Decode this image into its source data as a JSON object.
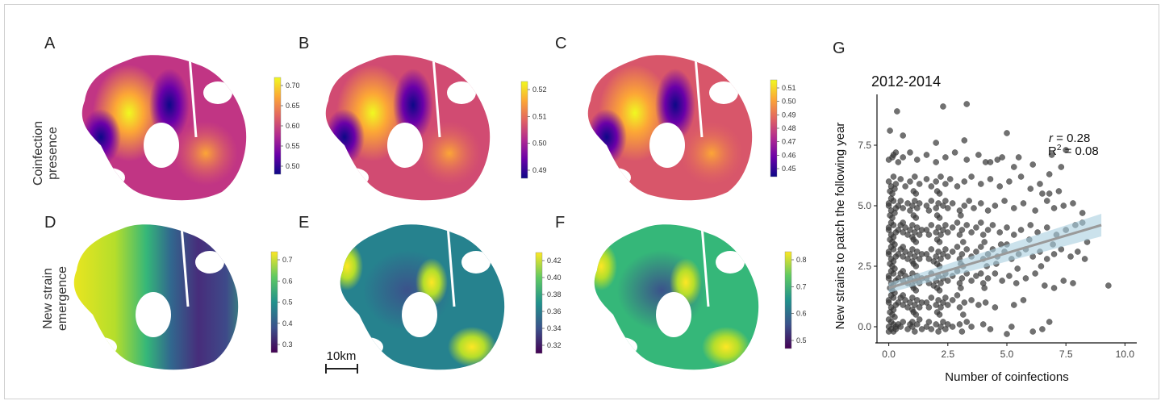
{
  "panels": {
    "A": {
      "letter": "A",
      "ticks": [
        "0.70",
        "0.65",
        "0.60",
        "0.55",
        "0.50"
      ],
      "palette": "plasma"
    },
    "B": {
      "letter": "B",
      "ticks": [
        "0.52",
        "0.51",
        "0.50",
        "0.49"
      ],
      "palette": "plasma"
    },
    "C": {
      "letter": "C",
      "ticks": [
        "0.51",
        "0.50",
        "0.49",
        "0.48",
        "0.47",
        "0.46",
        "0.45"
      ],
      "palette": "plasma"
    },
    "D": {
      "letter": "D",
      "ticks": [
        "0.7",
        "0.6",
        "0.5",
        "0.4",
        "0.3"
      ],
      "palette": "viridis"
    },
    "E": {
      "letter": "E",
      "ticks": [
        "0.42",
        "0.40",
        "0.38",
        "0.36",
        "0.34",
        "0.32"
      ],
      "palette": "viridis"
    },
    "F": {
      "letter": "F",
      "ticks": [
        "0.8",
        "0.7",
        "0.6",
        "0.5"
      ],
      "palette": "viridis"
    }
  },
  "row_labels": {
    "top_line1": "Coinfection",
    "top_line2": "presence",
    "bottom_line1": "New strain",
    "bottom_line2": "emergence"
  },
  "scale_bar": "10km",
  "palettes": {
    "plasma": [
      "#0d0887",
      "#6a00a8",
      "#b12a90",
      "#e16462",
      "#fca636",
      "#f0f921"
    ],
    "viridis": [
      "#440154",
      "#3b528b",
      "#21918c",
      "#5ec962",
      "#fde725"
    ]
  },
  "chart_data": {
    "type": "scatter",
    "letter": "G",
    "title": "2012-2014",
    "xlabel": "Number of coinfections",
    "ylabel": "New strains to patch the following year",
    "xlim": [
      -0.5,
      10.5
    ],
    "ylim": [
      -0.6,
      9.6
    ],
    "xticks": [
      0.0,
      2.5,
      5.0,
      7.5,
      10.0
    ],
    "xtick_labels": [
      "0.0",
      "2.5",
      "5.0",
      "7.5",
      "10.0"
    ],
    "yticks": [
      0.0,
      2.5,
      5.0,
      7.5
    ],
    "ytick_labels": [
      "0.0",
      "2.5",
      "5.0",
      "7.5"
    ],
    "point_color": "#3a3a3a",
    "fit_line": {
      "x": [
        0,
        9
      ],
      "y": [
        1.6,
        4.2
      ],
      "color": "#9a9a9a",
      "band_color": "#a9cfe0"
    },
    "stats": {
      "r_label": "r",
      "r_value": " = 0.28",
      "R2_base": "R",
      "R2_sup": "2",
      "R2_value": " = 0.08"
    },
    "points": [
      [
        0.05,
        8.1
      ],
      [
        0.35,
        8.9
      ],
      [
        0.15,
        7.0
      ],
      [
        0.3,
        7.2
      ],
      [
        2.3,
        9.1
      ],
      [
        3.3,
        9.2
      ],
      [
        0.6,
        7.9
      ],
      [
        2.0,
        7.6
      ],
      [
        3.2,
        7.7
      ],
      [
        5.0,
        8.0
      ],
      [
        4.1,
        6.8
      ],
      [
        4.6,
        6.9
      ],
      [
        5.5,
        7.0
      ],
      [
        6.9,
        7.1
      ],
      [
        7.5,
        7.3
      ],
      [
        9.3,
        1.7
      ],
      [
        8.4,
        3.5
      ],
      [
        8.2,
        4.7
      ],
      [
        6.4,
        5.9
      ],
      [
        6.8,
        5.5
      ],
      [
        0.0,
        0.0
      ],
      [
        0.1,
        -0.1
      ],
      [
        0.2,
        0.1
      ],
      [
        0.0,
        -0.2
      ],
      [
        0.3,
        0.0
      ],
      [
        0.1,
        0.2
      ],
      [
        0.2,
        -0.2
      ],
      [
        0.4,
        0.1
      ],
      [
        0.0,
        0.3
      ],
      [
        0.3,
        -0.1
      ],
      [
        0.5,
        0.0
      ],
      [
        0.6,
        0.2
      ],
      [
        0.8,
        -0.1
      ],
      [
        0.9,
        0.1
      ],
      [
        1.0,
        0.0
      ],
      [
        1.1,
        -0.2
      ],
      [
        1.2,
        0.1
      ],
      [
        1.3,
        0.3
      ],
      [
        1.4,
        -0.1
      ],
      [
        1.0,
        0.2
      ],
      [
        1.6,
        0.0
      ],
      [
        1.7,
        0.2
      ],
      [
        1.8,
        -0.1
      ],
      [
        2.0,
        0.1
      ],
      [
        2.1,
        -0.2
      ],
      [
        2.2,
        0.0
      ],
      [
        2.3,
        0.2
      ],
      [
        2.4,
        -0.1
      ],
      [
        2.5,
        0.1
      ],
      [
        2.7,
        0.0
      ],
      [
        3.0,
        0.1
      ],
      [
        3.1,
        -0.2
      ],
      [
        3.3,
        0.2
      ],
      [
        3.5,
        0.0
      ],
      [
        4.0,
        0.1
      ],
      [
        4.3,
        -0.1
      ],
      [
        5.0,
        -0.3
      ],
      [
        5.2,
        0.0
      ],
      [
        6.1,
        -0.2
      ],
      [
        6.5,
        -0.1
      ],
      [
        0.0,
        1.0
      ],
      [
        0.1,
        0.8
      ],
      [
        0.2,
        1.2
      ],
      [
        0.0,
        1.1
      ],
      [
        0.3,
        0.9
      ],
      [
        0.1,
        1.3
      ],
      [
        0.2,
        0.7
      ],
      [
        0.4,
        1.0
      ],
      [
        0.5,
        1.2
      ],
      [
        0.6,
        0.9
      ],
      [
        0.7,
        1.1
      ],
      [
        0.8,
        0.8
      ],
      [
        0.9,
        1.0
      ],
      [
        1.0,
        1.2
      ],
      [
        1.1,
        0.9
      ],
      [
        1.2,
        1.1
      ],
      [
        1.3,
        0.8
      ],
      [
        1.4,
        1.0
      ],
      [
        1.0,
        0.7
      ],
      [
        0.6,
        1.3
      ],
      [
        1.6,
        1.0
      ],
      [
        1.7,
        0.8
      ],
      [
        1.8,
        1.2
      ],
      [
        2.0,
        0.9
      ],
      [
        2.1,
        1.1
      ],
      [
        2.2,
        0.8
      ],
      [
        2.3,
        1.0
      ],
      [
        2.4,
        1.2
      ],
      [
        2.5,
        0.9
      ],
      [
        2.7,
        1.1
      ],
      [
        3.0,
        0.8
      ],
      [
        3.2,
        1.0
      ],
      [
        3.5,
        1.1
      ],
      [
        3.8,
        0.9
      ],
      [
        4.1,
        1.0
      ],
      [
        4.5,
        0.8
      ],
      [
        5.3,
        0.9
      ],
      [
        5.7,
        1.1
      ],
      [
        6.8,
        0.2
      ],
      [
        2.9,
        1.3
      ],
      [
        0.0,
        2.0
      ],
      [
        0.1,
        1.8
      ],
      [
        0.2,
        2.2
      ],
      [
        0.0,
        2.1
      ],
      [
        0.3,
        1.9
      ],
      [
        0.1,
        2.3
      ],
      [
        0.2,
        1.7
      ],
      [
        0.4,
        2.0
      ],
      [
        0.5,
        2.2
      ],
      [
        0.6,
        1.9
      ],
      [
        0.7,
        2.1
      ],
      [
        0.8,
        1.8
      ],
      [
        0.9,
        2.0
      ],
      [
        1.0,
        2.2
      ],
      [
        1.1,
        1.9
      ],
      [
        1.2,
        2.1
      ],
      [
        1.3,
        1.8
      ],
      [
        1.4,
        2.0
      ],
      [
        1.0,
        1.7
      ],
      [
        0.6,
        2.3
      ],
      [
        1.6,
        2.0
      ],
      [
        1.7,
        1.8
      ],
      [
        1.8,
        2.2
      ],
      [
        2.0,
        1.9
      ],
      [
        2.1,
        2.1
      ],
      [
        2.2,
        1.8
      ],
      [
        2.3,
        2.0
      ],
      [
        2.4,
        2.2
      ],
      [
        2.5,
        1.9
      ],
      [
        2.7,
        2.1
      ],
      [
        3.0,
        1.8
      ],
      [
        3.1,
        2.0
      ],
      [
        3.3,
        2.2
      ],
      [
        3.5,
        1.9
      ],
      [
        3.7,
        2.1
      ],
      [
        4.0,
        1.8
      ],
      [
        4.2,
        2.0
      ],
      [
        4.5,
        2.2
      ],
      [
        4.8,
        1.9
      ],
      [
        5.1,
        2.1
      ],
      [
        5.4,
        1.8
      ],
      [
        5.8,
        2.0
      ],
      [
        6.2,
        2.2
      ],
      [
        6.6,
        1.7
      ],
      [
        7.0,
        1.6
      ],
      [
        7.4,
        1.9
      ],
      [
        7.8,
        1.8
      ],
      [
        3.9,
        2.2
      ],
      [
        2.9,
        2.3
      ],
      [
        1.9,
        1.7
      ],
      [
        0.0,
        3.0
      ],
      [
        0.1,
        2.8
      ],
      [
        0.2,
        3.2
      ],
      [
        0.0,
        3.1
      ],
      [
        0.3,
        2.9
      ],
      [
        0.1,
        3.3
      ],
      [
        0.2,
        2.7
      ],
      [
        0.4,
        3.0
      ],
      [
        0.5,
        3.2
      ],
      [
        0.6,
        2.9
      ],
      [
        0.7,
        3.1
      ],
      [
        0.8,
        2.8
      ],
      [
        0.9,
        3.0
      ],
      [
        1.0,
        3.2
      ],
      [
        1.1,
        2.9
      ],
      [
        1.2,
        3.1
      ],
      [
        1.3,
        2.8
      ],
      [
        1.4,
        3.0
      ],
      [
        1.0,
        2.7
      ],
      [
        0.6,
        3.3
      ],
      [
        1.6,
        3.0
      ],
      [
        1.7,
        2.8
      ],
      [
        1.8,
        3.2
      ],
      [
        2.0,
        2.9
      ],
      [
        2.1,
        3.1
      ],
      [
        2.2,
        2.8
      ],
      [
        2.3,
        3.0
      ],
      [
        2.4,
        3.2
      ],
      [
        2.5,
        2.9
      ],
      [
        2.7,
        3.1
      ],
      [
        3.0,
        2.8
      ],
      [
        3.1,
        3.0
      ],
      [
        3.3,
        3.2
      ],
      [
        3.5,
        2.9
      ],
      [
        3.7,
        3.1
      ],
      [
        4.0,
        2.8
      ],
      [
        4.2,
        3.0
      ],
      [
        4.4,
        3.2
      ],
      [
        4.6,
        2.9
      ],
      [
        4.9,
        3.1
      ],
      [
        5.2,
        2.8
      ],
      [
        5.5,
        3.0
      ],
      [
        5.8,
        3.2
      ],
      [
        6.1,
        2.9
      ],
      [
        6.4,
        3.1
      ],
      [
        6.7,
        2.8
      ],
      [
        7.0,
        3.0
      ],
      [
        7.3,
        3.2
      ],
      [
        7.7,
        2.9
      ],
      [
        8.0,
        3.1
      ],
      [
        8.3,
        2.8
      ],
      [
        2.9,
        3.3
      ],
      [
        1.9,
        2.7
      ],
      [
        3.9,
        3.3
      ],
      [
        5.0,
        3.4
      ],
      [
        0.0,
        4.0
      ],
      [
        0.1,
        3.8
      ],
      [
        0.2,
        4.2
      ],
      [
        0.0,
        4.1
      ],
      [
        0.3,
        3.9
      ],
      [
        0.1,
        4.3
      ],
      [
        0.2,
        3.7
      ],
      [
        0.4,
        4.0
      ],
      [
        0.5,
        4.2
      ],
      [
        0.6,
        3.9
      ],
      [
        0.7,
        4.1
      ],
      [
        0.8,
        3.8
      ],
      [
        0.9,
        4.0
      ],
      [
        1.0,
        4.2
      ],
      [
        1.1,
        3.9
      ],
      [
        1.2,
        4.1
      ],
      [
        1.3,
        3.8
      ],
      [
        1.4,
        4.0
      ],
      [
        1.0,
        3.7
      ],
      [
        0.6,
        4.3
      ],
      [
        1.6,
        4.0
      ],
      [
        1.7,
        3.8
      ],
      [
        1.8,
        4.2
      ],
      [
        2.0,
        3.9
      ],
      [
        2.1,
        4.1
      ],
      [
        2.2,
        3.8
      ],
      [
        2.3,
        4.0
      ],
      [
        2.4,
        4.2
      ],
      [
        2.5,
        3.9
      ],
      [
        2.7,
        4.1
      ],
      [
        3.0,
        3.8
      ],
      [
        3.1,
        4.0
      ],
      [
        3.3,
        4.2
      ],
      [
        3.5,
        3.9
      ],
      [
        3.7,
        4.1
      ],
      [
        4.0,
        3.8
      ],
      [
        4.2,
        4.0
      ],
      [
        4.4,
        4.2
      ],
      [
        4.7,
        3.9
      ],
      [
        5.0,
        4.1
      ],
      [
        5.3,
        3.8
      ],
      [
        5.6,
        4.0
      ],
      [
        6.0,
        4.2
      ],
      [
        6.3,
        3.9
      ],
      [
        6.7,
        4.1
      ],
      [
        7.1,
        3.8
      ],
      [
        7.5,
        4.0
      ],
      [
        7.9,
        4.2
      ],
      [
        2.9,
        4.3
      ],
      [
        3.9,
        4.3
      ],
      [
        0.0,
        5.0
      ],
      [
        0.1,
        4.8
      ],
      [
        0.2,
        5.2
      ],
      [
        0.0,
        5.1
      ],
      [
        0.3,
        4.9
      ],
      [
        0.1,
        5.3
      ],
      [
        0.4,
        5.0
      ],
      [
        0.5,
        5.2
      ],
      [
        0.6,
        4.9
      ],
      [
        0.8,
        5.1
      ],
      [
        0.9,
        4.8
      ],
      [
        1.0,
        5.0
      ],
      [
        1.1,
        5.2
      ],
      [
        1.2,
        4.9
      ],
      [
        1.3,
        5.1
      ],
      [
        1.6,
        5.0
      ],
      [
        1.7,
        4.8
      ],
      [
        1.8,
        5.2
      ],
      [
        2.0,
        4.9
      ],
      [
        2.1,
        5.1
      ],
      [
        2.3,
        5.0
      ],
      [
        2.4,
        5.2
      ],
      [
        2.5,
        4.9
      ],
      [
        2.7,
        5.1
      ],
      [
        3.0,
        4.8
      ],
      [
        3.2,
        5.0
      ],
      [
        3.4,
        5.2
      ],
      [
        3.6,
        4.9
      ],
      [
        3.9,
        5.1
      ],
      [
        4.2,
        4.8
      ],
      [
        4.5,
        5.0
      ],
      [
        4.9,
        5.2
      ],
      [
        5.3,
        4.9
      ],
      [
        5.7,
        5.1
      ],
      [
        6.2,
        4.8
      ],
      [
        6.7,
        5.2
      ],
      [
        7.0,
        4.9
      ],
      [
        7.4,
        5.0
      ],
      [
        7.8,
        5.1
      ],
      [
        8.2,
        4.3
      ],
      [
        0.0,
        6.0
      ],
      [
        0.1,
        5.8
      ],
      [
        0.2,
        6.2
      ],
      [
        0.3,
        5.9
      ],
      [
        0.5,
        6.1
      ],
      [
        0.7,
        5.8
      ],
      [
        0.9,
        6.0
      ],
      [
        1.1,
        6.2
      ],
      [
        1.3,
        5.9
      ],
      [
        1.6,
        6.1
      ],
      [
        1.8,
        5.8
      ],
      [
        2.0,
        6.0
      ],
      [
        2.2,
        6.2
      ],
      [
        2.4,
        5.9
      ],
      [
        2.6,
        6.1
      ],
      [
        2.9,
        5.8
      ],
      [
        3.2,
        6.0
      ],
      [
        3.5,
        6.2
      ],
      [
        3.9,
        5.9
      ],
      [
        4.3,
        6.1
      ],
      [
        4.7,
        5.8
      ],
      [
        5.1,
        6.0
      ],
      [
        5.6,
        6.2
      ],
      [
        6.0,
        5.7
      ],
      [
        6.5,
        5.5
      ],
      [
        7.2,
        5.6
      ],
      [
        0.0,
        6.9
      ],
      [
        0.2,
        7.1
      ],
      [
        0.4,
        6.8
      ],
      [
        0.6,
        7.0
      ],
      [
        0.9,
        7.2
      ],
      [
        1.2,
        6.9
      ],
      [
        1.6,
        7.1
      ],
      [
        2.0,
        6.8
      ],
      [
        2.4,
        7.0
      ],
      [
        2.8,
        7.2
      ],
      [
        3.3,
        6.9
      ],
      [
        3.8,
        7.1
      ],
      [
        4.3,
        6.8
      ],
      [
        4.8,
        7.0
      ],
      [
        5.3,
        6.6
      ],
      [
        6.1,
        6.7
      ],
      [
        6.8,
        6.3
      ],
      [
        7.3,
        6.6
      ],
      [
        0.05,
        5.6
      ],
      [
        0.15,
        5.5
      ],
      [
        0.25,
        5.7
      ],
      [
        0.05,
        4.6
      ],
      [
        0.15,
        4.5
      ],
      [
        0.25,
        4.7
      ],
      [
        0.05,
        3.6
      ],
      [
        0.15,
        3.5
      ],
      [
        0.25,
        3.4
      ],
      [
        0.05,
        2.6
      ],
      [
        0.15,
        2.5
      ],
      [
        0.25,
        2.4
      ],
      [
        0.05,
        1.6
      ],
      [
        0.15,
        1.5
      ],
      [
        0.25,
        1.4
      ],
      [
        0.05,
        0.6
      ],
      [
        0.15,
        0.5
      ],
      [
        0.25,
        0.4
      ],
      [
        1.05,
        5.6
      ],
      [
        1.15,
        5.5
      ],
      [
        1.05,
        4.6
      ],
      [
        1.15,
        4.5
      ],
      [
        1.05,
        3.6
      ],
      [
        1.15,
        3.5
      ],
      [
        1.05,
        2.6
      ],
      [
        1.15,
        2.5
      ],
      [
        1.05,
        1.6
      ],
      [
        1.15,
        1.5
      ],
      [
        1.05,
        0.6
      ],
      [
        1.15,
        0.5
      ],
      [
        2.05,
        5.6
      ],
      [
        2.15,
        5.5
      ],
      [
        2.05,
        4.6
      ],
      [
        2.15,
        4.5
      ],
      [
        2.05,
        3.6
      ],
      [
        2.15,
        3.5
      ],
      [
        2.05,
        2.6
      ],
      [
        2.15,
        2.5
      ],
      [
        2.05,
        1.6
      ],
      [
        2.15,
        1.5
      ],
      [
        2.05,
        0.6
      ],
      [
        2.15,
        0.5
      ],
      [
        3.05,
        4.6
      ],
      [
        3.15,
        3.5
      ],
      [
        3.05,
        2.6
      ],
      [
        3.15,
        2.5
      ],
      [
        3.05,
        1.6
      ],
      [
        3.15,
        0.5
      ],
      [
        4.05,
        3.5
      ],
      [
        4.15,
        2.5
      ],
      [
        4.05,
        1.6
      ],
      [
        4.55,
        2.6
      ],
      [
        4.75,
        3.4
      ],
      [
        5.45,
        2.4
      ],
      [
        5.95,
        3.6
      ],
      [
        6.45,
        2.5
      ],
      [
        6.95,
        3.4
      ]
    ]
  }
}
